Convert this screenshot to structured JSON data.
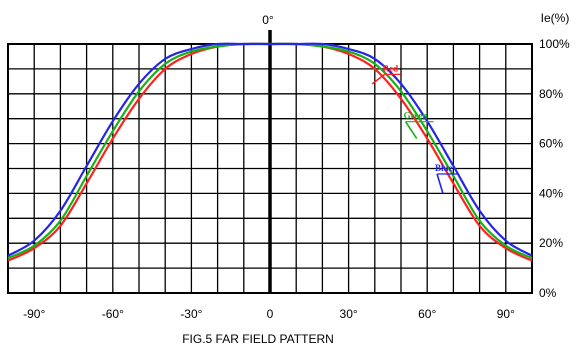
{
  "chart_data": {
    "type": "line",
    "caption": "FIG.5 FAR FIELD PATTERN",
    "ylabel": "Ie(%)",
    "center_label": "0°",
    "xlim": [
      -100,
      100
    ],
    "ylim": [
      0,
      100
    ],
    "grid": true,
    "x_ticks": [
      {
        "value": -90,
        "label": "-90°"
      },
      {
        "value": -60,
        "label": "-60°"
      },
      {
        "value": -30,
        "label": "-30°"
      },
      {
        "value": 0,
        "label": "0"
      },
      {
        "value": 30,
        "label": "30°"
      },
      {
        "value": 60,
        "label": "60°"
      },
      {
        "value": 90,
        "label": "90°"
      }
    ],
    "y_ticks": [
      {
        "value": 100,
        "label": "100%"
      },
      {
        "value": 80,
        "label": "80%"
      },
      {
        "value": 60,
        "label": "60%"
      },
      {
        "value": 40,
        "label": "40%"
      },
      {
        "value": 20,
        "label": "20%"
      },
      {
        "value": 0,
        "label": "0%"
      }
    ],
    "series": [
      {
        "name": "Red",
        "color": "#ff2020",
        "label_at": [
          43,
          89
        ],
        "arrow_to": [
          39,
          84
        ],
        "points": [
          [
            -100,
            13
          ],
          [
            -90,
            18
          ],
          [
            -80,
            27
          ],
          [
            -70,
            44
          ],
          [
            -60,
            62
          ],
          [
            -50,
            78
          ],
          [
            -40,
            90
          ],
          [
            -30,
            96
          ],
          [
            -20,
            99
          ],
          [
            -10,
            100
          ],
          [
            0,
            100
          ],
          [
            10,
            100
          ],
          [
            20,
            99
          ],
          [
            30,
            96
          ],
          [
            40,
            90
          ],
          [
            50,
            78
          ],
          [
            60,
            62
          ],
          [
            70,
            44
          ],
          [
            80,
            27
          ],
          [
            90,
            18
          ],
          [
            100,
            13
          ]
        ]
      },
      {
        "name": "Green",
        "color": "#1ab01a",
        "label_at": [
          51,
          70
        ],
        "arrow_to": [
          56,
          62
        ],
        "points": [
          [
            -100,
            14
          ],
          [
            -90,
            19
          ],
          [
            -80,
            29
          ],
          [
            -70,
            47
          ],
          [
            -60,
            65
          ],
          [
            -50,
            81
          ],
          [
            -40,
            92
          ],
          [
            -30,
            97
          ],
          [
            -20,
            99
          ],
          [
            -10,
            100
          ],
          [
            0,
            100
          ],
          [
            10,
            100
          ],
          [
            20,
            99
          ],
          [
            30,
            97
          ],
          [
            40,
            92
          ],
          [
            50,
            81
          ],
          [
            60,
            65
          ],
          [
            70,
            47
          ],
          [
            80,
            29
          ],
          [
            90,
            19
          ],
          [
            100,
            14
          ]
        ]
      },
      {
        "name": "Blue",
        "color": "#2525e8",
        "label_at": [
          63,
          49
        ],
        "arrow_to": [
          66,
          40
        ],
        "points": [
          [
            -100,
            15
          ],
          [
            -90,
            21
          ],
          [
            -80,
            33
          ],
          [
            -70,
            51
          ],
          [
            -60,
            69
          ],
          [
            -50,
            84
          ],
          [
            -40,
            94
          ],
          [
            -30,
            98
          ],
          [
            -20,
            100
          ],
          [
            -10,
            100
          ],
          [
            0,
            100
          ],
          [
            10,
            100
          ],
          [
            20,
            100
          ],
          [
            30,
            98
          ],
          [
            40,
            94
          ],
          [
            50,
            84
          ],
          [
            60,
            69
          ],
          [
            70,
            51
          ],
          [
            80,
            33
          ],
          [
            90,
            21
          ],
          [
            100,
            15
          ]
        ]
      }
    ]
  }
}
